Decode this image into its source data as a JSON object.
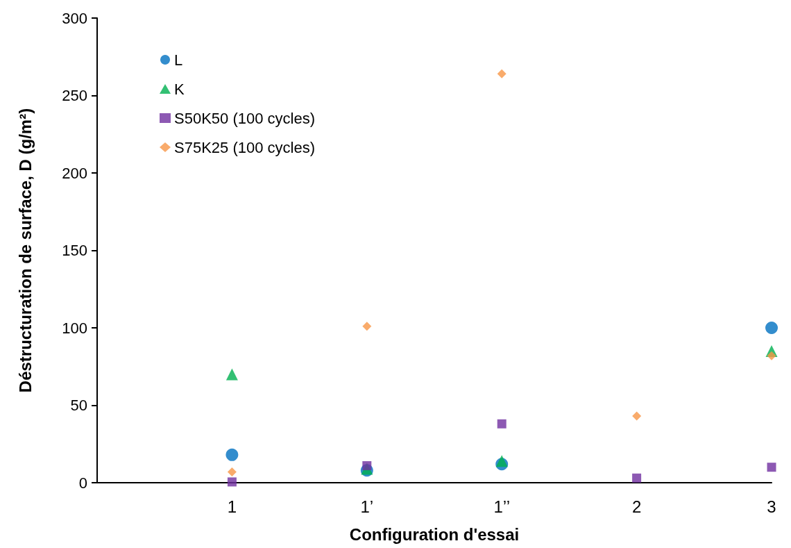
{
  "chart_data": {
    "type": "scatter",
    "xlabel": "Configuration d'essai",
    "ylabel": "Déstructuration de surface, D (g/m²)",
    "categories": [
      null,
      "1",
      "1’",
      "1’’",
      "2",
      "3"
    ],
    "ylim": [
      0,
      300
    ],
    "yticks": [
      0,
      50,
      100,
      150,
      200,
      250,
      300
    ],
    "grid": false,
    "legend": "top left",
    "series": [
      {
        "name": "L",
        "color": "#0070c0",
        "marker": "circle",
        "values": [
          null,
          18,
          8,
          12,
          null,
          100
        ]
      },
      {
        "name": "K",
        "color": "#00b050",
        "marker": "triangle",
        "values": [
          null,
          70,
          9,
          14,
          null,
          85
        ]
      },
      {
        "name": "S50K50 (100 cycles)",
        "color": "#7030a0",
        "marker": "square",
        "values": [
          null,
          0.5,
          11,
          38,
          3,
          10
        ]
      },
      {
        "name": "S75K25 (100 cycles)",
        "color": "#f79646",
        "marker": "diamond",
        "values": [
          null,
          7,
          101,
          264,
          43,
          82
        ]
      }
    ]
  }
}
